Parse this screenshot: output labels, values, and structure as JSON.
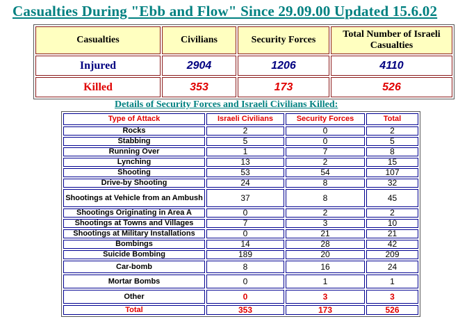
{
  "title": "Casualties During \"Ebb and Flow\" Since 29.09.00 Updated 15.6.02",
  "summary": {
    "headers": [
      "Casualties",
      "Civilians",
      "Security Forces",
      "Total Number of Israeli Casualties"
    ],
    "rows": [
      {
        "label": "Injured",
        "civilians": "2904",
        "security_forces": "1206",
        "total": "4110"
      },
      {
        "label": "Killed",
        "civilians": "353",
        "security_forces": "173",
        "total": "526"
      }
    ]
  },
  "details_title": "Details of Security Forces and Israeli Civilians Killed:",
  "details": {
    "headers": [
      "Type of Attack",
      "Israeli Civilians",
      "Security Forces",
      "Total"
    ],
    "rows": [
      {
        "type": "Rocks",
        "civilians": "2",
        "security": "0",
        "total": "2"
      },
      {
        "type": "Stabbing",
        "civilians": "5",
        "security": "0",
        "total": "5"
      },
      {
        "type": "Running Over",
        "civilians": "1",
        "security": "7",
        "total": "8"
      },
      {
        "type": "Lynching",
        "civilians": "13",
        "security": "2",
        "total": "15"
      },
      {
        "type": "Shooting",
        "civilians": "53",
        "security": "54",
        "total": "107"
      },
      {
        "type": "Drive-by Shooting",
        "civilians": "24",
        "security": "8",
        "total": "32"
      },
      {
        "type": "Shootings at Vehicle from an Ambush",
        "civilians": "37",
        "security": "8",
        "total": "45"
      },
      {
        "type": "Shootings Originating in Area A",
        "civilians": "0",
        "security": "2",
        "total": "2"
      },
      {
        "type": "Shootings at Towns and Villages",
        "civilians": "7",
        "security": "3",
        "total": "10"
      },
      {
        "type": "Shootings at Military Installations",
        "civilians": "0",
        "security": "21",
        "total": "21"
      },
      {
        "type": "Bombings",
        "civilians": "14",
        "security": "28",
        "total": "42"
      },
      {
        "type": "Suicide Bombing",
        "civilians": "189",
        "security": "20",
        "total": "209"
      },
      {
        "type": "Car-bomb",
        "civilians": "8",
        "security": "16",
        "total": "24"
      },
      {
        "type": "Mortar Bombs",
        "civilians": "0",
        "security": "1",
        "total": "1"
      },
      {
        "type": "Other",
        "civilians": "0",
        "security": "3",
        "total": "3"
      },
      {
        "type": "Total",
        "civilians": "353",
        "security": "173",
        "total": "526"
      }
    ]
  },
  "colors": {
    "title": "#008080",
    "header_bg": "#ffffc0",
    "injured": "#000080",
    "killed": "#e00000"
  }
}
